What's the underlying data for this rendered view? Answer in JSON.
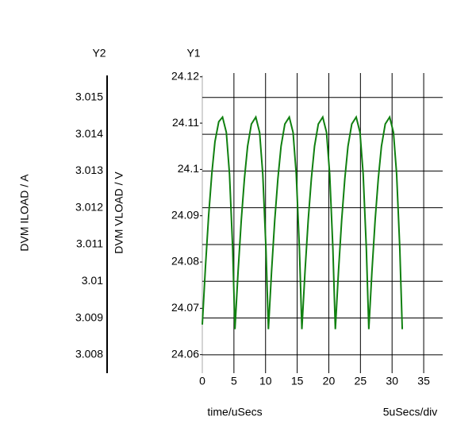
{
  "chart_data": {
    "type": "line",
    "y_label": "Y1",
    "y2_label": "Y2",
    "y_title": "DVM VLOAD / V",
    "y2_title": "DVM ILOAD / A",
    "x_title": "time/uSecs",
    "x_scale_note": "5uSecs/div",
    "x": [
      0,
      0.5,
      1,
      1.5,
      2,
      2.6,
      3.2,
      3.8,
      4.3,
      4.8,
      5.16,
      5.66,
      6.16,
      6.66,
      7.16,
      7.76,
      8.46,
      9.06,
      9.56,
      10.06,
      10.45,
      10.95,
      11.45,
      11.95,
      12.45,
      13.05,
      13.75,
      14.35,
      14.85,
      15.35,
      15.74,
      16.24,
      16.74,
      17.24,
      17.74,
      18.34,
      19.04,
      19.64,
      20.14,
      20.64,
      21.03,
      21.53,
      22.03,
      22.53,
      23.03,
      23.63,
      24.33,
      24.93,
      25.43,
      25.93,
      26.32,
      26.82,
      27.32,
      27.82,
      28.32,
      28.92,
      29.62,
      30.22,
      30.72,
      31.22,
      31.61
    ],
    "series": [
      {
        "color": "#108010",
        "values": [
          24.0665,
          24.079,
          24.09,
          24.099,
          24.106,
          24.1103,
          24.1113,
          24.108,
          24.099,
          24.083,
          24.0655,
          24.078,
          24.089,
          24.098,
          24.105,
          24.1098,
          24.1113,
          24.108,
          24.099,
          24.083,
          24.0655,
          24.078,
          24.089,
          24.098,
          24.105,
          24.1098,
          24.1113,
          24.108,
          24.099,
          24.083,
          24.0655,
          24.078,
          24.089,
          24.098,
          24.105,
          24.1098,
          24.1113,
          24.108,
          24.099,
          24.083,
          24.0655,
          24.078,
          24.089,
          24.098,
          24.105,
          24.1098,
          24.1113,
          24.108,
          24.099,
          24.083,
          24.0655,
          24.078,
          24.089,
          24.098,
          24.105,
          24.1098,
          24.1113,
          24.108,
          24.099,
          24.083,
          24.0655
        ]
      }
    ],
    "xlim": [
      0,
      38
    ],
    "xticks": [
      0,
      5,
      10,
      15,
      20,
      25,
      30,
      35
    ],
    "ylim": [
      24.056,
      24.1203
    ],
    "yticks": [
      24.06,
      24.07,
      24.08,
      24.09,
      24.1,
      24.11,
      24.12
    ],
    "y2lim": [
      3.0075,
      3.0156
    ],
    "y2ticks": [
      3.008,
      3.009,
      3.01,
      3.011,
      3.012,
      3.013,
      3.014,
      3.015
    ],
    "grid": true
  }
}
